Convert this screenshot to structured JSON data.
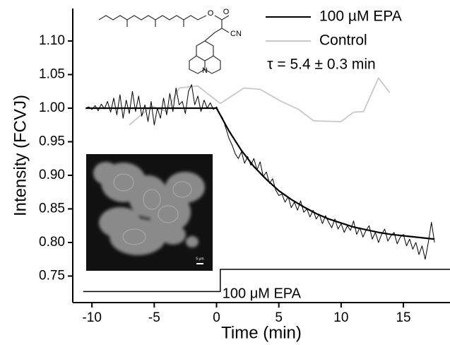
{
  "chart_data": {
    "type": "line",
    "xlabel": "Time (min)",
    "ylabel": "Intensity (FCVJ)",
    "xlim": [
      -11.54,
      18.74
    ],
    "ylim": [
      0.7105,
      1.1484
    ],
    "xticks": [
      -10,
      -5,
      0,
      5,
      10,
      15
    ],
    "yticks": [
      0.75,
      {
        "value": 0.8,
        "label": "0.80"
      },
      0.85,
      {
        "value": 0.9,
        "label": "0.90"
      },
      0.95,
      {
        "value": 1.0,
        "label": "1.00"
      },
      1.05,
      {
        "value": 1.1,
        "label": "1.10"
      }
    ],
    "legend": "upper right",
    "series": [
      {
        "name": "100 µM EPA",
        "color": "#000000",
        "x": [
          -10.5,
          -10.25,
          -10,
          -9.75,
          -9.5,
          -9.25,
          -9,
          -8.75,
          -8.5,
          -8.25,
          -8,
          -7.75,
          -7.5,
          -7.25,
          -7,
          -6.75,
          -6.5,
          -6.25,
          -6,
          -5.75,
          -5.5,
          -5.25,
          -5,
          -4.75,
          -4.5,
          -4.25,
          -4,
          -3.75,
          -3.5,
          -3.25,
          -3,
          -2.75,
          -2.5,
          -2.25,
          -2,
          -1.75,
          -1.5,
          -1.25,
          -1,
          -0.75,
          -0.5,
          -0.25,
          0,
          0.25,
          0.5,
          0.75,
          1,
          1.25,
          1.5,
          1.75,
          2,
          2.25,
          2.5,
          2.75,
          3,
          3.25,
          3.5,
          3.75,
          4,
          4.25,
          4.5,
          4.75,
          5,
          5.25,
          5.5,
          5.75,
          6,
          6.25,
          6.5,
          6.75,
          7,
          7.25,
          7.5,
          7.75,
          8,
          8.25,
          8.5,
          8.75,
          9,
          9.25,
          9.5,
          9.75,
          10,
          10.25,
          10.5,
          10.75,
          11,
          11.25,
          11.5,
          11.75,
          12,
          12.25,
          12.5,
          12.75,
          13,
          13.25,
          13.5,
          13.75,
          14,
          14.25,
          14.5,
          14.75,
          15,
          15.25,
          15.5,
          15.75,
          16,
          16.25,
          16.5,
          16.75,
          17,
          17.25,
          17.5
        ],
        "values": [
          1.0,
          1.002,
          0.998,
          1.004,
          0.996,
          1.006,
          0.999,
          1.01,
          0.994,
          1.015,
          0.99,
          1.02,
          0.985,
          1.012,
          0.992,
          1.025,
          0.995,
          1.018,
          0.988,
          1.005,
          0.98,
          1.01,
          0.975,
          1.0,
          0.985,
          1.015,
          0.99,
          1.022,
          0.995,
          1.03,
          1.005,
          1.01,
          0.992,
          1.025,
          1.035,
          1.005,
          1.018,
          0.995,
          1.012,
          1.0,
          1.008,
          0.998,
          1.002,
          0.992,
          0.985,
          0.97,
          0.955,
          0.945,
          0.932,
          0.925,
          0.935,
          0.918,
          0.928,
          0.915,
          0.925,
          0.908,
          0.92,
          0.898,
          0.905,
          0.888,
          0.895,
          0.878,
          0.87,
          0.872,
          0.86,
          0.868,
          0.852,
          0.86,
          0.848,
          0.862,
          0.845,
          0.85,
          0.838,
          0.848,
          0.835,
          0.842,
          0.828,
          0.84,
          0.83,
          0.822,
          0.835,
          0.82,
          0.828,
          0.815,
          0.825,
          0.818,
          0.832,
          0.812,
          0.822,
          0.808,
          0.818,
          0.825,
          0.805,
          0.815,
          0.8,
          0.812,
          0.82,
          0.802,
          0.81,
          0.815,
          0.798,
          0.808,
          0.812,
          0.795,
          0.805,
          0.79,
          0.8,
          0.782,
          0.795,
          0.775,
          0.8,
          0.83,
          0.8
        ]
      },
      {
        "name": "Control",
        "color": "#c8c8c8",
        "x": [
          -7,
          -5.2,
          -4,
          -3,
          -1.5,
          0.3,
          2.2,
          3.5,
          5.2,
          6.6,
          7.8,
          10,
          11,
          11.8,
          13,
          13.9
        ],
        "values": [
          0.975,
          1.003,
          0.995,
          1.03,
          1.033,
          1.007,
          1.03,
          1.028,
          1.01,
          0.998,
          0.981,
          0.98,
          0.994,
          0.995,
          1.045,
          1.023
        ]
      }
    ],
    "fit": {
      "color": "#000000",
      "x": [
        -10.5,
        0,
        1,
        2,
        3,
        4,
        5,
        6,
        7,
        8,
        9,
        10,
        11,
        12,
        13,
        14,
        15,
        16,
        17.5
      ],
      "values": [
        1.0,
        1.0,
        0.966,
        0.937,
        0.913,
        0.894,
        0.877,
        0.864,
        0.853,
        0.843,
        0.835,
        0.829,
        0.823,
        0.819,
        0.815,
        0.812,
        0.81,
        0.808,
        0.805
      ]
    },
    "fit_annotation": "τ = 5.4 ± 0.3 min",
    "stimulus": {
      "label": "100 μM EPA",
      "color": "#000000",
      "x": [
        -10.7,
        0.3,
        0.3,
        18.74
      ],
      "values": [
        0.727,
        0.727,
        0.76,
        0.76
      ]
    },
    "inset_scale_label": "5 μm",
    "structure_labels": [
      "O",
      "O",
      "CN",
      "N"
    ]
  }
}
